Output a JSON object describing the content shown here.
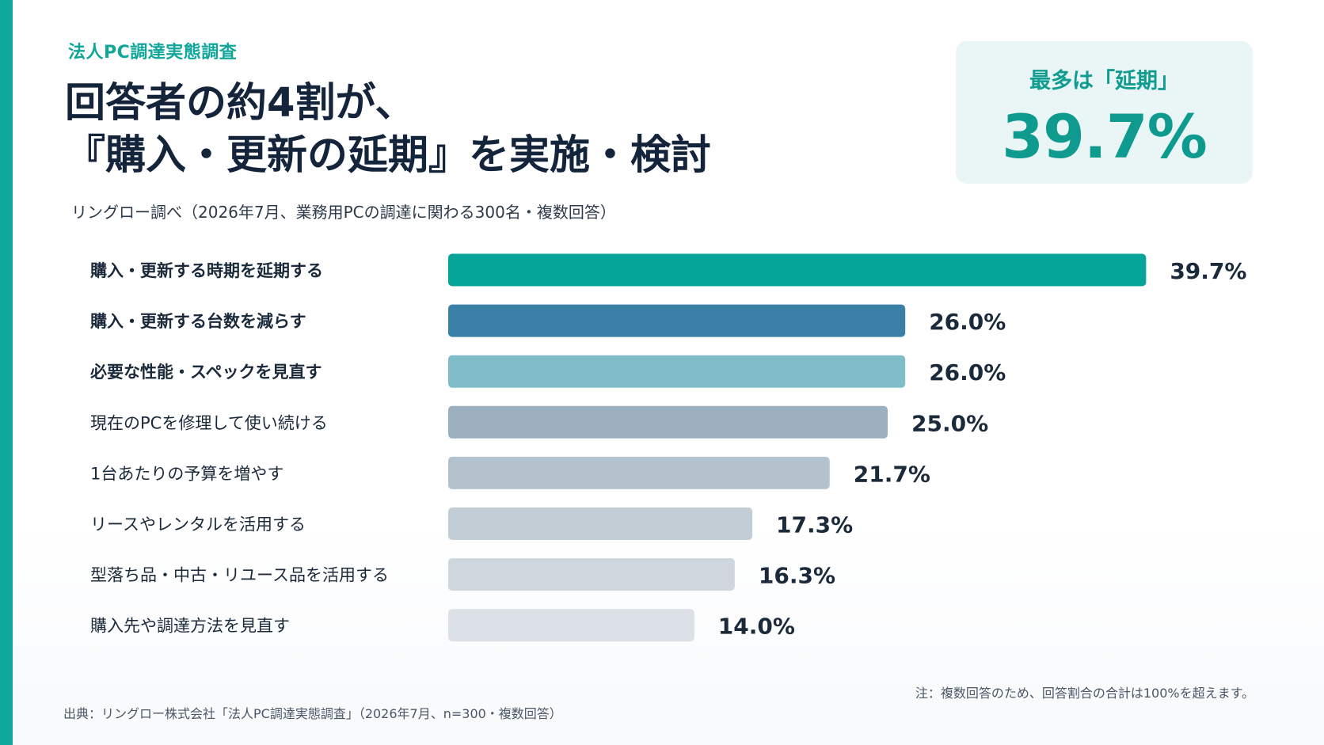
{
  "header": {
    "eyebrow": "法人PC調達実態調査",
    "headline_line1": "回答者の約4割が、",
    "headline_line2": "『購入・更新の延期』を実施・検討",
    "subtitle": "リングロー調べ（2026年7月、業務用PCの調達に関わる300名・複数回答）"
  },
  "callout": {
    "label": "最多は「延期」",
    "value": "39.7%"
  },
  "chart_data": {
    "type": "bar",
    "orientation": "horizontal",
    "categories": [
      "購入・更新する時期を延期する",
      "購入・更新する台数を減らす",
      "必要な性能・スペックを見直す",
      "現在のPCを修理して使い続ける",
      "1台あたりの予算を増やす",
      "リースやレンタルを活用する",
      "型落ち品・中古・リユース品を活用する",
      "購入先や調達方法を見直す"
    ],
    "values": [
      39.7,
      26.0,
      26.0,
      25.0,
      21.7,
      17.3,
      16.3,
      14.0
    ],
    "value_labels": [
      "39.7%",
      "26.0%",
      "26.0%",
      "25.0%",
      "21.7%",
      "17.3%",
      "16.3%",
      "14.0%"
    ],
    "colors": [
      "#06a59a",
      "#3a7fa6",
      "#7fbdc8",
      "#9cb0c0",
      "#b4c2ce",
      "#c3cdd6",
      "#ced6de",
      "#dbe1e7"
    ],
    "bold_label_count": 3,
    "xlim": [
      0,
      40
    ],
    "grid": false
  },
  "footer": {
    "note": "注：複数回答のため、回答割合の合計は100%を超えます。",
    "source": "出典：リングロー株式会社「法人PC調達実態調査」（2026年7月、n=300・複数回答）"
  }
}
